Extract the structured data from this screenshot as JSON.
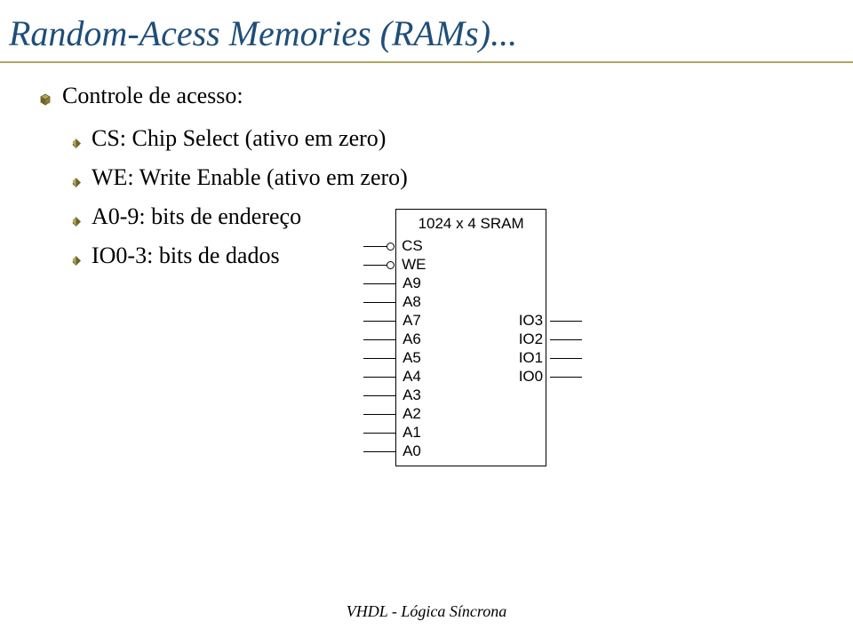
{
  "title": "Random-Acess Memories (RAMs)...",
  "colors": {
    "title_color": "#1f4e79",
    "rule_color": "#b0a560",
    "bullet1_fill": "#b0a560",
    "bullet1_stroke": "#6e6328",
    "bullet2_fill": "#6e6328"
  },
  "level1_items": [
    {
      "text": "Controle de acesso:"
    }
  ],
  "level2_items": [
    {
      "text": "CS: Chip Select (ativo em zero)"
    },
    {
      "text": "WE: Write Enable (ativo em zero)"
    },
    {
      "text": "A0-9: bits de endereço"
    },
    {
      "text": "IO0-3: bits de dados"
    }
  ],
  "chip": {
    "title": "1024 x 4 SRAM",
    "left_pins": [
      {
        "label": "CS",
        "inverted": true
      },
      {
        "label": "WE",
        "inverted": true
      },
      {
        "label": "A9",
        "inverted": false
      },
      {
        "label": "A8",
        "inverted": false
      },
      {
        "label": "A7",
        "inverted": false
      },
      {
        "label": "A6",
        "inverted": false
      },
      {
        "label": "A5",
        "inverted": false
      },
      {
        "label": "A4",
        "inverted": false
      },
      {
        "label": "A3",
        "inverted": false
      },
      {
        "label": "A2",
        "inverted": false
      },
      {
        "label": "A1",
        "inverted": false
      },
      {
        "label": "A0",
        "inverted": false
      }
    ],
    "right_pins": [
      {
        "label": "IO3"
      },
      {
        "label": "IO2"
      },
      {
        "label": "IO1"
      },
      {
        "label": "IO0"
      }
    ]
  },
  "footer": "VHDL - Lógica Síncrona"
}
